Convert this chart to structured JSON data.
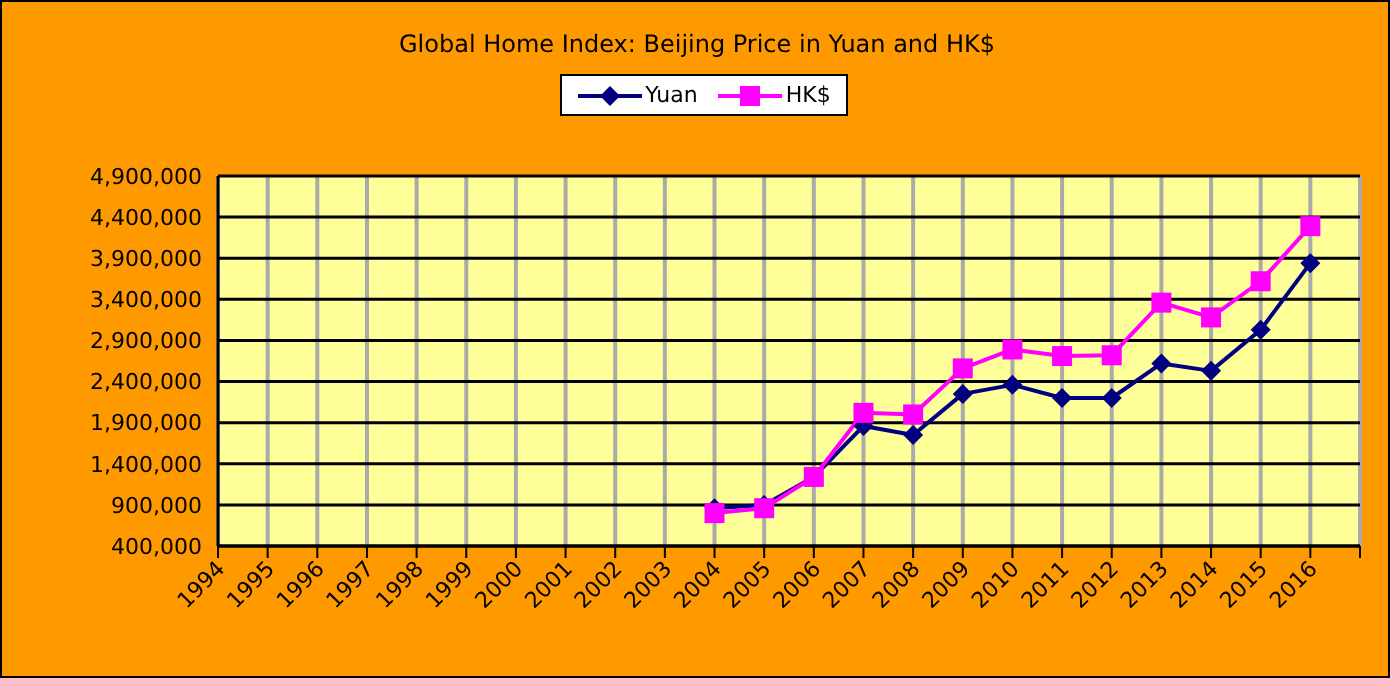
{
  "chart_data": {
    "type": "line",
    "title": "Global Home Index: Beijing Price in Yuan and HK$",
    "categories": [
      "1994",
      "1995",
      "1996",
      "1997",
      "1998",
      "1999",
      "2000",
      "2001",
      "2002",
      "2003",
      "2004",
      "2005",
      "2006",
      "2007",
      "2008",
      "2009",
      "2010",
      "2011",
      "2012",
      "2013",
      "2014",
      "2015",
      "2016",
      null
    ],
    "series": [
      {
        "name": "Yuan",
        "color": "#000080",
        "marker": "diamond",
        "values": [
          null,
          null,
          null,
          null,
          null,
          null,
          null,
          null,
          null,
          null,
          860000,
          900000,
          1240000,
          1860000,
          1750000,
          2250000,
          2360000,
          2200000,
          2200000,
          2620000,
          2530000,
          3030000,
          3840000,
          null
        ]
      },
      {
        "name": "HK$",
        "color": "#ff00ff",
        "marker": "square",
        "values": [
          null,
          null,
          null,
          null,
          null,
          null,
          null,
          null,
          null,
          null,
          800000,
          860000,
          1240000,
          2020000,
          2000000,
          2560000,
          2790000,
          2710000,
          2720000,
          3360000,
          3180000,
          3620000,
          4290000,
          null
        ]
      }
    ],
    "ylim": [
      400000,
      4900000
    ],
    "yticks": [
      {
        "value": 400000,
        "label": "400,000"
      },
      {
        "value": 900000,
        "label": "900,000"
      },
      {
        "value": 1400000,
        "label": "1,400,000"
      },
      {
        "value": 1900000,
        "label": "1,900,000"
      },
      {
        "value": 2400000,
        "label": "2,400,000"
      },
      {
        "value": 2900000,
        "label": "2,900,000"
      },
      {
        "value": 3400000,
        "label": "3,400,000"
      },
      {
        "value": 3900000,
        "label": "3,900,000"
      },
      {
        "value": 4400000,
        "label": "4,400,000"
      },
      {
        "value": 4900000,
        "label": "4,900,000"
      }
    ],
    "grid": true,
    "legend": "top"
  }
}
